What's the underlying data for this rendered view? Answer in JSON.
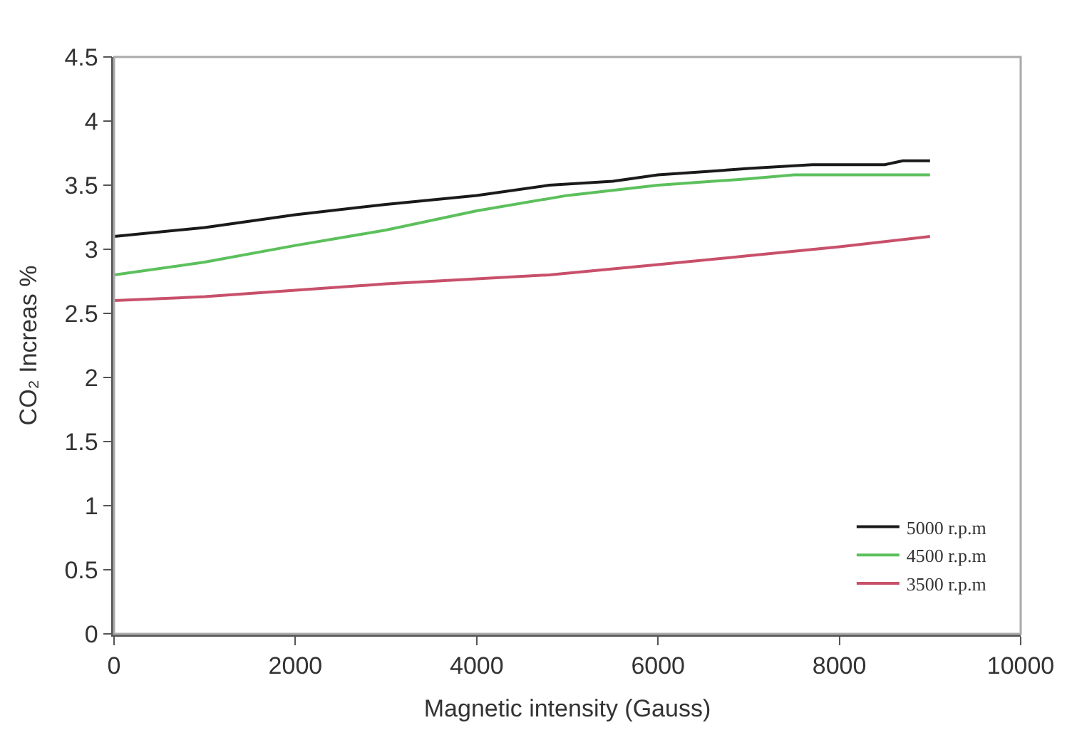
{
  "chart_data": {
    "type": "line",
    "xlabel": "Magnetic intensity (Gauss)",
    "ylabel": "CO₂ Increas %",
    "xlim": [
      0,
      10000
    ],
    "xticks": [
      0,
      2000,
      4000,
      6000,
      8000,
      10000
    ],
    "ylim": [
      0,
      4.5
    ],
    "yticks": [
      0,
      0.5,
      1,
      1.5,
      2,
      2.5,
      3,
      3.5,
      4,
      4.5
    ],
    "legend": "bottom right",
    "marker": "none",
    "line_style": "solid",
    "series": [
      {
        "name": "5000 r.p.m",
        "color": "#1a1a1a",
        "x": [
          0,
          1000,
          2000,
          3000,
          4000,
          4800,
          5500,
          6000,
          7000,
          7700,
          8500,
          8700,
          9000
        ],
        "values": [
          3.1,
          3.17,
          3.27,
          3.35,
          3.42,
          3.5,
          3.53,
          3.58,
          3.63,
          3.66,
          3.66,
          3.69,
          3.69
        ]
      },
      {
        "name": "4500 r.p.m",
        "color": "#5cc05c",
        "x": [
          0,
          1000,
          2000,
          3000,
          4000,
          5000,
          6000,
          7000,
          7500,
          9000
        ],
        "values": [
          2.8,
          2.9,
          3.03,
          3.15,
          3.3,
          3.42,
          3.5,
          3.55,
          3.58,
          3.58
        ]
      },
      {
        "name": "3500 r.p.m",
        "color": "#c8506a",
        "x": [
          0,
          1000,
          2000,
          3000,
          4000,
          4800,
          6000,
          7000,
          8000,
          9000
        ],
        "values": [
          2.6,
          2.63,
          2.68,
          2.73,
          2.77,
          2.8,
          2.88,
          2.95,
          3.02,
          3.1
        ]
      }
    ]
  }
}
